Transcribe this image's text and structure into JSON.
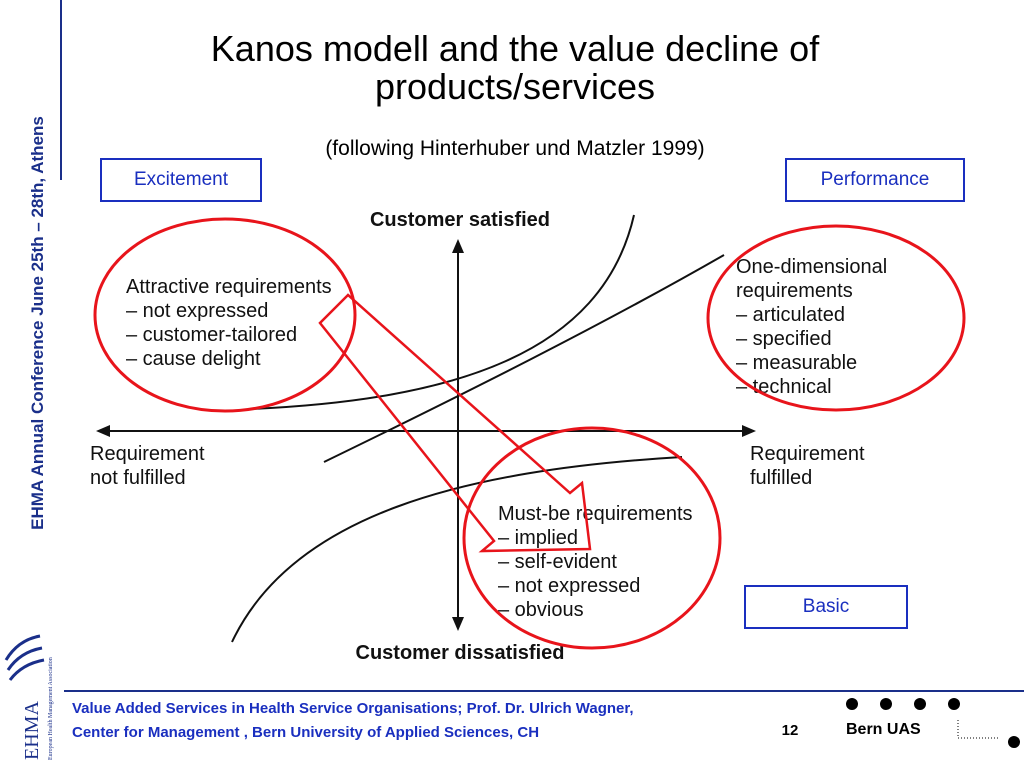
{
  "sidebar": {
    "conference_text": "EHMA Annual Conference June 25th – 28th, Athens"
  },
  "logo": {
    "abbreviation": "EHMA",
    "full_name": "European Health Management Association"
  },
  "header": {
    "title_line1": "Kanos modell and the value decline of",
    "title_line2": "products/services",
    "subtitle": "(following Hinterhuber und Matzler 1999)"
  },
  "labels": {
    "excitement": "Excitement",
    "performance": "Performance",
    "basic": "Basic"
  },
  "diagram": {
    "axis_top": "Customer satisfied",
    "axis_bottom": "Customer dissatisfied",
    "axis_left_line1": "Requirement",
    "axis_left_line2": "not fulfilled",
    "axis_right_line1": "Requirement",
    "axis_right_line2": "fulfilled",
    "attractive": [
      "Attractive requirements",
      "– not expressed",
      "– customer-tailored",
      "– cause delight"
    ],
    "one_dimensional": [
      "One-dimensional",
      "requirements",
      "– articulated",
      "– specified",
      "– measurable",
      "– technical"
    ],
    "must_be": [
      "Must-be requirements",
      "– implied",
      "– self-evident",
      "– not expressed",
      "– obvious"
    ],
    "highlight_color": "#e8141b",
    "accent_color": "#1a2fbf"
  },
  "footer": {
    "line1": "Value Added Services in Health Service Organisations; Prof. Dr. Ulrich Wagner,",
    "line2": "Center for Management , Bern University of Applied Sciences, CH",
    "page_number": "12",
    "organization": "Bern UAS"
  }
}
